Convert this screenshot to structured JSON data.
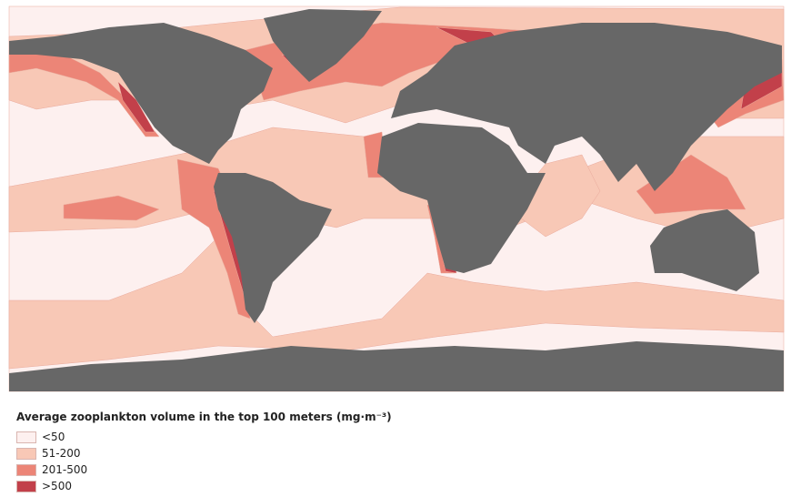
{
  "legend": {
    "title": "Average zooplankton volume in the top 100 meters (mg·m⁻³)",
    "items": [
      {
        "label": "<50",
        "color": "#fdf0ef"
      },
      {
        "label": "51-200",
        "color": "#f8c8b6"
      },
      {
        "label": "201-500",
        "color": "#ec8577"
      },
      {
        "label": ">500",
        "color": "#c2404a"
      }
    ]
  },
  "land_color": "#676767"
}
